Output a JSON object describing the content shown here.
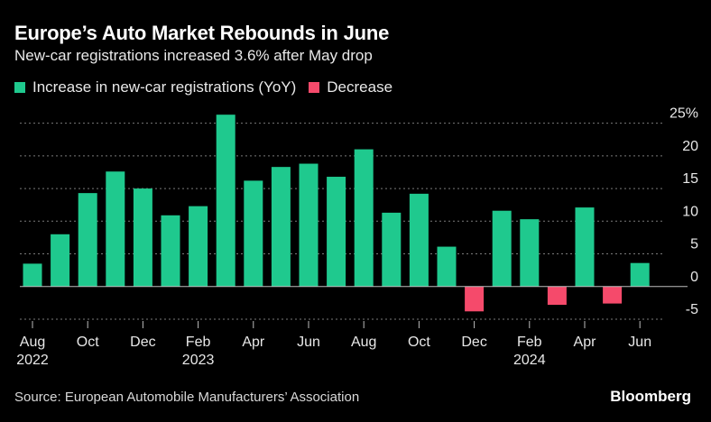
{
  "header": {
    "title": "Europe’s Auto Market Rebounds in June",
    "subtitle": "New-car registrations increased 3.6% after May drop"
  },
  "legend": {
    "increase_label": "Increase in new-car registrations (YoY)",
    "decrease_label": "Decrease"
  },
  "colors": {
    "increase": "#1fc98e",
    "decrease": "#f54a6b",
    "grid": "#7a7a7a",
    "axis": "#bdbdbd",
    "background": "#000000"
  },
  "chart_data": {
    "type": "bar",
    "title": "Europe’s Auto Market Rebounds in June",
    "subtitle": "New-car registrations increased 3.6% after May drop",
    "xlabel": "",
    "ylabel": "",
    "ylim": [
      -5,
      25
    ],
    "y_ticks": [
      {
        "value": 25,
        "label": "25%"
      },
      {
        "value": 20,
        "label": "20"
      },
      {
        "value": 15,
        "label": "15"
      },
      {
        "value": 10,
        "label": "10"
      },
      {
        "value": 5,
        "label": "5"
      },
      {
        "value": 0,
        "label": "0"
      },
      {
        "value": -5,
        "label": "-5"
      }
    ],
    "categories": [
      "Aug 2022",
      "Sep 2022",
      "Oct 2022",
      "Nov 2022",
      "Dec 2022",
      "Jan 2023",
      "Feb 2023",
      "Mar 2023",
      "Apr 2023",
      "May 2023",
      "Jun 2023",
      "Jul 2023",
      "Aug 2023",
      "Sep 2023",
      "Oct 2023",
      "Nov 2023",
      "Dec 2023",
      "Jan 2024",
      "Feb 2024",
      "Mar 2024",
      "Apr 2024",
      "May 2024",
      "Jun 2024"
    ],
    "values": [
      3.5,
      8.0,
      14.3,
      17.6,
      15.0,
      10.9,
      12.3,
      26.3,
      16.2,
      18.3,
      18.8,
      16.8,
      21.0,
      11.3,
      14.2,
      6.1,
      -3.8,
      11.6,
      10.3,
      -2.8,
      12.1,
      -2.6,
      3.6
    ],
    "x_tick_labels": [
      {
        "index": 0,
        "label": "Aug",
        "year": "2022"
      },
      {
        "index": 2,
        "label": "Oct",
        "year": ""
      },
      {
        "index": 4,
        "label": "Dec",
        "year": ""
      },
      {
        "index": 6,
        "label": "Feb",
        "year": "2023"
      },
      {
        "index": 8,
        "label": "Apr",
        "year": ""
      },
      {
        "index": 10,
        "label": "Jun",
        "year": ""
      },
      {
        "index": 12,
        "label": "Aug",
        "year": ""
      },
      {
        "index": 14,
        "label": "Oct",
        "year": ""
      },
      {
        "index": 16,
        "label": "Dec",
        "year": ""
      },
      {
        "index": 18,
        "label": "Feb",
        "year": "2024"
      },
      {
        "index": 20,
        "label": "Apr",
        "year": ""
      },
      {
        "index": 22,
        "label": "Jun",
        "year": ""
      }
    ],
    "grid": true,
    "legend_position": "top-left"
  },
  "footer": {
    "source": "Source: European Automobile Manufacturers’ Association",
    "brand": "Bloomberg"
  }
}
